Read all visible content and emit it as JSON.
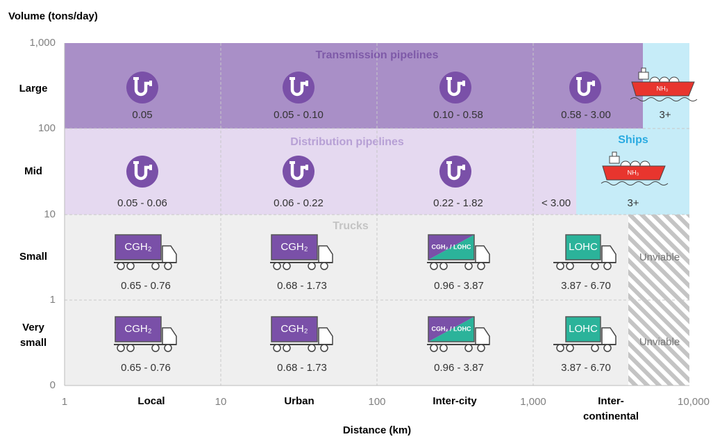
{
  "y_axis": {
    "title": "Volume (tons/day)",
    "ticks": [
      "1,000",
      "100",
      "10",
      "1",
      "0"
    ],
    "categories": [
      [
        "Large"
      ],
      [
        "Mid"
      ],
      [
        "Small"
      ],
      [
        "Very",
        "small"
      ]
    ]
  },
  "x_axis": {
    "title": "Distance (km)",
    "ticks": [
      "1",
      "10",
      "100",
      "1,000",
      "10,000"
    ],
    "categories": [
      [
        "Local"
      ],
      [
        "Urban"
      ],
      [
        "Inter-city"
      ],
      [
        "Inter-",
        "continental"
      ]
    ]
  },
  "pipelines": {
    "transmission": {
      "label": "Transmission pipelines",
      "costs": [
        "0.05",
        "0.05 - 0.10",
        "0.10 - 0.58",
        "0.58 - 3.00"
      ]
    },
    "distribution": {
      "label": "Distribution pipelines",
      "costs": [
        "0.05 - 0.06",
        "0.06 - 0.22",
        "0.22 - 1.82",
        "< 3.00"
      ]
    }
  },
  "ships": {
    "label": "Ships",
    "cargo": "NH₃",
    "costs": [
      "3+",
      "3+"
    ]
  },
  "trucks": {
    "label": "Trucks",
    "rows": [
      [
        {
          "cargo": "CGH₂",
          "cost": "0.65 - 0.76"
        },
        {
          "cargo": "CGH₂",
          "cost": "0.68 - 1.73"
        },
        {
          "cargo": "CGH₂ / LOHC",
          "cost": "0.96 - 3.87"
        },
        {
          "cargo": "LOHC",
          "cost": "3.87 - 6.70"
        }
      ],
      [
        {
          "cargo": "CGH₂",
          "cost": "0.65 - 0.76"
        },
        {
          "cargo": "CGH₂",
          "cost": "0.68 - 1.73"
        },
        {
          "cargo": "CGH₂ / LOHC",
          "cost": "0.96 - 3.87"
        },
        {
          "cargo": "LOHC",
          "cost": "3.87 - 6.70"
        }
      ]
    ],
    "unviable": [
      "Unviable",
      "Unviable"
    ]
  }
}
